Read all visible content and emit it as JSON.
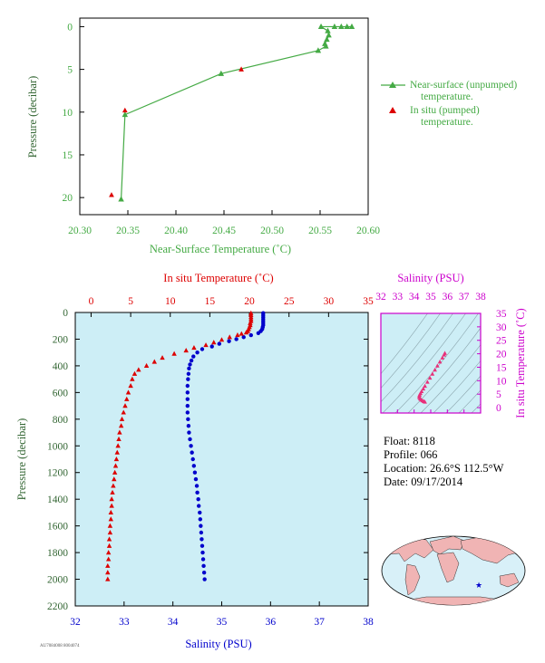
{
  "colors": {
    "green": "#44aa44",
    "red": "#dd0000",
    "blue": "#0000cc",
    "magenta": "#cc00cc",
    "darkgreen": "#336633",
    "plotbg": "#cdeef6",
    "pink": "#e8307a"
  },
  "info": {
    "float_line": "Float:  8118",
    "profile_line": "Profile:  066",
    "location_line": "Location:  26.6°S  112.5°W",
    "date_line": "Date:  09/17/2014"
  },
  "footer_text": "AU7084008  8004074",
  "chart_data": [
    {
      "id": "near_surface",
      "type": "line",
      "xlabel": "Near-Surface Temperature (˚C)",
      "ylabel": "Pressure (decibar)",
      "xlim": [
        20.3,
        20.6
      ],
      "ylim": [
        22,
        -1
      ],
      "xticks": [
        "20.30",
        "20.35",
        "20.40",
        "20.45",
        "20.50",
        "20.55",
        "20.60"
      ],
      "xtick_values": [
        20.3,
        20.35,
        20.4,
        20.45,
        20.5,
        20.55,
        20.6
      ],
      "yticks": [
        "0",
        "5",
        "10",
        "15",
        "20"
      ],
      "ytick_values": [
        0,
        5,
        10,
        15,
        20
      ],
      "legend": {
        "unpumped_line1": "Near-surface (unpumped)",
        "unpumped_line2": "temperature.",
        "pumped_line1": "In situ (pumped)",
        "pumped_line2": "temperature."
      },
      "series": [
        {
          "name": "Near-surface (unpumped) temperature.",
          "points": [
            [
              20.583,
              0.0
            ],
            [
              20.578,
              0.0
            ],
            [
              20.572,
              0.0
            ],
            [
              20.565,
              0.0
            ],
            [
              20.551,
              0.0
            ],
            [
              20.558,
              0.5
            ],
            [
              20.559,
              1.0
            ],
            [
              20.557,
              1.5
            ],
            [
              20.555,
              2.0
            ],
            [
              20.556,
              2.3
            ],
            [
              20.548,
              2.8
            ],
            [
              20.447,
              5.5
            ],
            [
              20.347,
              10.3
            ],
            [
              20.343,
              20.2
            ]
          ]
        },
        {
          "name": "In situ (pumped) temperature.",
          "points": [
            [
              20.468,
              5.0
            ],
            [
              20.347,
              9.8
            ],
            [
              20.333,
              19.7
            ]
          ]
        }
      ]
    },
    {
      "id": "profile",
      "type": "scatter",
      "top_xlabel": "In situ Temperature (˚C)",
      "bottom_xlabel": "Salinity (PSU)",
      "ylabel": "Pressure (decibar)",
      "temp_xlim": [
        -2,
        35
      ],
      "sal_xlim": [
        32,
        38
      ],
      "ylim": [
        2200,
        0
      ],
      "temp_ticks": [
        "0",
        "5",
        "10",
        "15",
        "20",
        "25",
        "30",
        "35"
      ],
      "temp_tick_values": [
        0,
        5,
        10,
        15,
        20,
        25,
        30,
        35
      ],
      "sal_ticks": [
        "32",
        "33",
        "34",
        "35",
        "36",
        "37",
        "38"
      ],
      "sal_tick_values": [
        32,
        33,
        34,
        35,
        36,
        37,
        38
      ],
      "yticks": [
        "0",
        "200",
        "400",
        "600",
        "800",
        "1000",
        "1200",
        "1400",
        "1600",
        "1800",
        "2000",
        "2200"
      ],
      "ytick_values": [
        0,
        200,
        400,
        600,
        800,
        1000,
        1200,
        1400,
        1600,
        1800,
        2000,
        2200
      ],
      "temperature": [
        [
          20.2,
          5
        ],
        [
          20.2,
          20
        ],
        [
          20.2,
          35
        ],
        [
          20.2,
          50
        ],
        [
          20.2,
          65
        ],
        [
          20.1,
          80
        ],
        [
          20.1,
          95
        ],
        [
          20.0,
          110
        ],
        [
          19.9,
          125
        ],
        [
          19.8,
          140
        ],
        [
          19.6,
          150
        ],
        [
          19.0,
          160
        ],
        [
          18.5,
          170
        ],
        [
          17.5,
          185
        ],
        [
          16.5,
          205
        ],
        [
          15.5,
          225
        ],
        [
          14.5,
          245
        ],
        [
          13.0,
          265
        ],
        [
          12.0,
          285
        ],
        [
          10.5,
          310
        ],
        [
          9.0,
          340
        ],
        [
          8.0,
          370
        ],
        [
          7.0,
          400
        ],
        [
          6.0,
          430
        ],
        [
          5.5,
          460
        ],
        [
          5.2,
          500
        ],
        [
          5.0,
          550
        ],
        [
          4.7,
          600
        ],
        [
          4.5,
          650
        ],
        [
          4.3,
          700
        ],
        [
          4.1,
          750
        ],
        [
          3.9,
          800
        ],
        [
          3.8,
          850
        ],
        [
          3.6,
          900
        ],
        [
          3.5,
          950
        ],
        [
          3.4,
          1000
        ],
        [
          3.3,
          1050
        ],
        [
          3.2,
          1100
        ],
        [
          3.1,
          1150
        ],
        [
          3.0,
          1200
        ],
        [
          2.9,
          1250
        ],
        [
          2.8,
          1300
        ],
        [
          2.7,
          1350
        ],
        [
          2.6,
          1400
        ],
        [
          2.6,
          1450
        ],
        [
          2.5,
          1500
        ],
        [
          2.5,
          1550
        ],
        [
          2.4,
          1600
        ],
        [
          2.4,
          1650
        ],
        [
          2.3,
          1700
        ],
        [
          2.3,
          1750
        ],
        [
          2.2,
          1800
        ],
        [
          2.2,
          1850
        ],
        [
          2.1,
          1900
        ],
        [
          2.1,
          1950
        ],
        [
          2.1,
          2000
        ]
      ],
      "salinity": [
        [
          35.85,
          5
        ],
        [
          35.85,
          20
        ],
        [
          35.85,
          35
        ],
        [
          35.85,
          50
        ],
        [
          35.85,
          65
        ],
        [
          35.85,
          80
        ],
        [
          35.85,
          95
        ],
        [
          35.84,
          110
        ],
        [
          35.83,
          125
        ],
        [
          35.8,
          140
        ],
        [
          35.75,
          155
        ],
        [
          35.6,
          170
        ],
        [
          35.45,
          185
        ],
        [
          35.3,
          200
        ],
        [
          35.15,
          215
        ],
        [
          34.95,
          235
        ],
        [
          34.8,
          255
        ],
        [
          34.6,
          275
        ],
        [
          34.5,
          300
        ],
        [
          34.42,
          330
        ],
        [
          34.38,
          360
        ],
        [
          34.35,
          390
        ],
        [
          34.33,
          420
        ],
        [
          34.32,
          460
        ],
        [
          34.31,
          500
        ],
        [
          34.3,
          550
        ],
        [
          34.3,
          600
        ],
        [
          34.3,
          650
        ],
        [
          34.3,
          700
        ],
        [
          34.3,
          750
        ],
        [
          34.31,
          800
        ],
        [
          34.32,
          850
        ],
        [
          34.33,
          900
        ],
        [
          34.35,
          950
        ],
        [
          34.37,
          1000
        ],
        [
          34.39,
          1050
        ],
        [
          34.41,
          1100
        ],
        [
          34.43,
          1150
        ],
        [
          34.45,
          1200
        ],
        [
          34.47,
          1250
        ],
        [
          34.49,
          1300
        ],
        [
          34.5,
          1350
        ],
        [
          34.52,
          1400
        ],
        [
          34.53,
          1450
        ],
        [
          34.55,
          1500
        ],
        [
          34.56,
          1550
        ],
        [
          34.57,
          1600
        ],
        [
          34.58,
          1650
        ],
        [
          34.59,
          1700
        ],
        [
          34.6,
          1750
        ],
        [
          34.61,
          1800
        ],
        [
          34.62,
          1850
        ],
        [
          34.63,
          1900
        ],
        [
          34.64,
          1950
        ],
        [
          34.65,
          2000
        ]
      ]
    },
    {
      "id": "ts_diagram",
      "type": "scatter",
      "xlabel": "Salinity (PSU)",
      "ylabel": "In situ Temperature (˚C)",
      "xlim": [
        32,
        38
      ],
      "ylim": [
        -2,
        35
      ],
      "xticks": [
        "32",
        "33",
        "34",
        "35",
        "36",
        "37",
        "38"
      ],
      "xtick_values": [
        32,
        33,
        34,
        35,
        36,
        37,
        38
      ],
      "yticks": [
        "0",
        "5",
        "10",
        "15",
        "20",
        "25",
        "30",
        "35"
      ],
      "ytick_values": [
        0,
        5,
        10,
        15,
        20,
        25,
        30,
        35
      ],
      "points": [
        [
          35.85,
          20.2
        ],
        [
          35.8,
          19.6
        ],
        [
          35.7,
          18.5
        ],
        [
          35.55,
          17.0
        ],
        [
          35.4,
          15.5
        ],
        [
          35.25,
          14.0
        ],
        [
          35.1,
          12.5
        ],
        [
          34.95,
          11.0
        ],
        [
          34.8,
          9.5
        ],
        [
          34.65,
          8.0
        ],
        [
          34.55,
          7.0
        ],
        [
          34.45,
          6.0
        ],
        [
          34.38,
          5.3
        ],
        [
          34.33,
          4.7
        ],
        [
          34.31,
          4.2
        ],
        [
          34.32,
          3.8
        ],
        [
          34.36,
          3.3
        ],
        [
          34.42,
          2.9
        ],
        [
          34.5,
          2.6
        ],
        [
          34.58,
          2.3
        ],
        [
          34.65,
          2.1
        ]
      ]
    }
  ]
}
